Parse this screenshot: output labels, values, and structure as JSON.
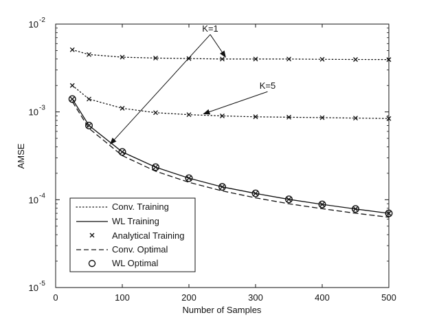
{
  "chart_data": {
    "type": "line",
    "yscale": "log",
    "xlabel": "Number of Samples",
    "ylabel": "AMSE",
    "xlim": [
      0,
      500
    ],
    "ylim": [
      1e-05,
      0.01
    ],
    "grid": false,
    "legend_position": "bottom-left",
    "x_ticks": [
      0,
      100,
      200,
      300,
      400,
      500
    ],
    "x_tick_labels": [
      "0",
      "100",
      "200",
      "300",
      "400",
      "500"
    ],
    "y_ticks": [
      1e-05,
      0.0001,
      0.001,
      0.01
    ],
    "y_tick_labels": [
      {
        "base": "10",
        "exp": "-5"
      },
      {
        "base": "10",
        "exp": "-4"
      },
      {
        "base": "10",
        "exp": "-3"
      },
      {
        "base": "10",
        "exp": "-2"
      }
    ],
    "series": [
      {
        "name": "Conv. Training K=1",
        "legend": "Conv. Training",
        "style": "dotted",
        "x": [
          25,
          50,
          100,
          150,
          200,
          250,
          300,
          350,
          400,
          450,
          500
        ],
        "y": [
          0.0051,
          0.0045,
          0.0042,
          0.0041,
          0.00405,
          0.004,
          0.004,
          0.004,
          0.00397,
          0.00395,
          0.00394
        ]
      },
      {
        "name": "Conv. Training K=5",
        "legend": "Conv. Training",
        "style": "dotted",
        "x": [
          25,
          50,
          100,
          150,
          200,
          250,
          300,
          350,
          400,
          450,
          500
        ],
        "y": [
          0.002,
          0.0014,
          0.0011,
          0.00098,
          0.00093,
          0.0009,
          0.00088,
          0.00087,
          0.00086,
          0.00085,
          0.00084
        ]
      },
      {
        "name": "WL Training",
        "legend": "WL Training",
        "style": "solid",
        "x": [
          25,
          50,
          100,
          150,
          200,
          250,
          300,
          350,
          400,
          450,
          500
        ],
        "y": [
          0.0014,
          0.0007,
          0.00035,
          0.000235,
          0.000176,
          0.00014,
          0.000118,
          0.000101,
          8.85e-05,
          7.85e-05,
          7e-05
        ]
      },
      {
        "name": "Analytical Training K=1",
        "legend": "Analytical Training",
        "style": "marker-x",
        "x": [
          25,
          50,
          100,
          150,
          200,
          250,
          300,
          350,
          400,
          450,
          500
        ],
        "y": [
          0.0051,
          0.0045,
          0.0042,
          0.0041,
          0.00405,
          0.004,
          0.004,
          0.004,
          0.00397,
          0.00395,
          0.00394
        ]
      },
      {
        "name": "Analytical Training K=5",
        "legend": "Analytical Training",
        "style": "marker-x",
        "x": [
          25,
          50,
          100,
          150,
          200,
          250,
          300,
          350,
          400,
          450,
          500
        ],
        "y": [
          0.002,
          0.0014,
          0.0011,
          0.00098,
          0.00093,
          0.0009,
          0.00088,
          0.00087,
          0.00086,
          0.00085,
          0.00084
        ]
      },
      {
        "name": "Analytical Training (WL)",
        "legend": "Analytical Training",
        "style": "marker-x",
        "x": [
          25,
          50,
          100,
          150,
          200,
          250,
          300,
          350,
          400,
          450,
          500
        ],
        "y": [
          0.0014,
          0.0007,
          0.00035,
          0.000235,
          0.000176,
          0.00014,
          0.000118,
          0.000101,
          8.85e-05,
          7.85e-05,
          7e-05
        ]
      },
      {
        "name": "Conv. Optimal",
        "legend": "Conv. Optimal",
        "style": "dashed",
        "x": [
          25,
          50,
          100,
          150,
          200,
          250,
          300,
          350,
          400,
          450,
          500
        ],
        "y": [
          0.00131,
          0.00065,
          0.000318,
          0.000211,
          0.000158,
          0.000126,
          0.000105,
          9e-05,
          7.9e-05,
          7.02e-05,
          6.32e-05
        ]
      },
      {
        "name": "WL Optimal",
        "legend": "WL Optimal",
        "style": "marker-o",
        "x": [
          25,
          50,
          100,
          150,
          200,
          250,
          300,
          350,
          400,
          450,
          500
        ],
        "y": [
          0.0014,
          0.0007,
          0.00035,
          0.000235,
          0.000176,
          0.00014,
          0.000118,
          0.000101,
          8.85e-05,
          7.85e-05,
          7e-05
        ]
      }
    ],
    "legend": [
      {
        "label": "Conv. Training",
        "style": "dotted"
      },
      {
        "label": "WL Training",
        "style": "solid"
      },
      {
        "label": "Analytical Training",
        "style": "marker-x"
      },
      {
        "label": "Conv. Optimal",
        "style": "dashed"
      },
      {
        "label": "WL Optimal",
        "style": "marker-o"
      }
    ],
    "annotations": [
      {
        "text": "K=1",
        "anchor_x": 232,
        "anchor_y": 0.0076,
        "arrows": [
          {
            "x": 255,
            "y": 0.0042
          },
          {
            "x": 82,
            "y": 0.00043
          }
        ]
      },
      {
        "text": "K=5",
        "anchor_x": 318,
        "anchor_y": 0.0017,
        "arrows": [
          {
            "x": 222,
            "y": 0.00095
          }
        ]
      }
    ]
  }
}
